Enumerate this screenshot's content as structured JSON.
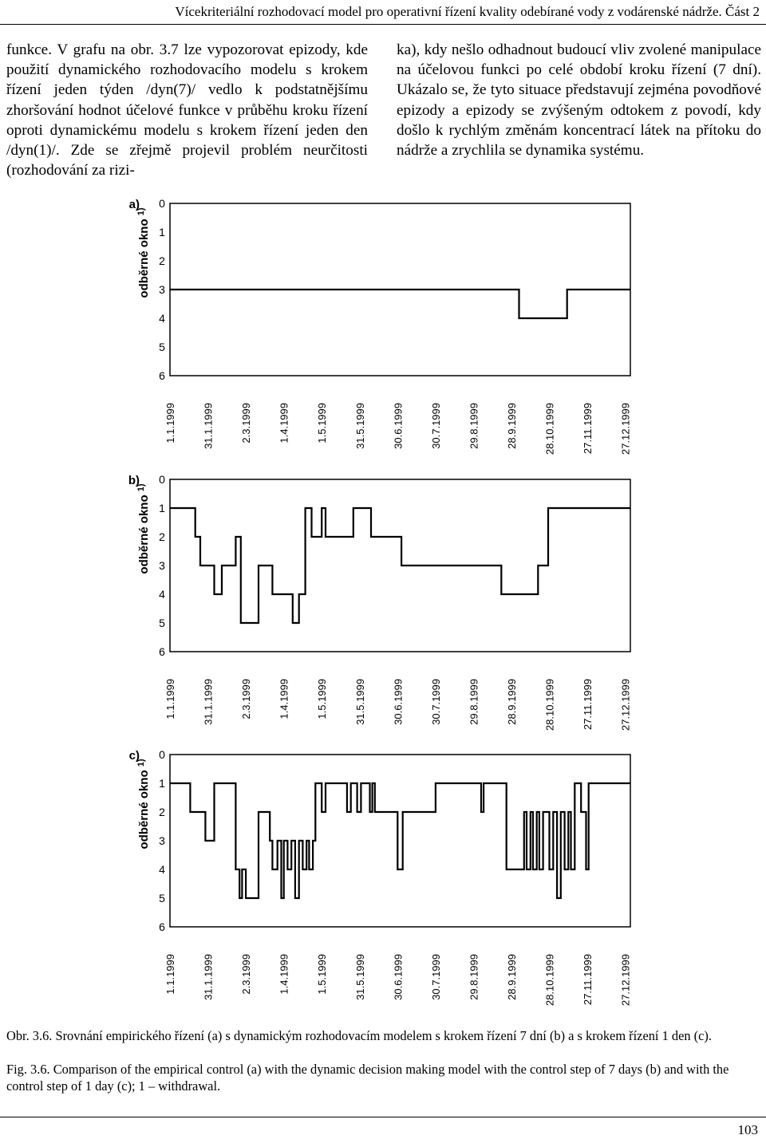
{
  "header": {
    "running_title": "Vícekriteriální rozhodovací model pro operativní řízení kvality odebírané vody z vodárenské nádrže. Část 2"
  },
  "body_text": {
    "left_column": "funkce. V grafu na obr. 3.7 lze vypozorovat epizody, kde použití dynamického rozhodovacího modelu s krokem řízení jeden týden /dyn(7)/ vedlo k podstatnějšímu zhoršování hodnot účelové funkce v průběhu kroku řízení oproti dynamickému modelu s krokem řízení jeden den /dyn(1)/. Zde se zřejmě projevil problém neurčitosti (rozhodování za rizi-",
    "right_column": "ka), kdy nešlo odhadnout budoucí vliv zvolené manipulace na účelovou funkci po celé období kroku řízení (7 dní). Ukázalo se, že tyto situace představují zejména povodňové epizody a epizody se zvýšeným odtokem z povodí, kdy došlo k rychlým změnám koncentrací látek na přítoku do nádrže a zrychlila se dynamika systému."
  },
  "chart_data": [
    {
      "type": "line",
      "panel_label": "a)",
      "ylabel": "odběrné okno",
      "ylabel_superscript": "1)",
      "ylim": [
        6,
        0
      ],
      "yticks": [
        "0",
        "1",
        "2",
        "3",
        "4",
        "5",
        "6"
      ],
      "xlim": [
        1,
        365
      ],
      "xticks": [
        {
          "day": 1,
          "label": "1.1.1999"
        },
        {
          "day": 31,
          "label": "31.1.1999"
        },
        {
          "day": 61,
          "label": "2.3.1999"
        },
        {
          "day": 91,
          "label": "1.4.1999"
        },
        {
          "day": 121,
          "label": "1.5.1999"
        },
        {
          "day": 151,
          "label": "31.5.1999"
        },
        {
          "day": 181,
          "label": "30.6.1999"
        },
        {
          "day": 211,
          "label": "30.7.1999"
        },
        {
          "day": 241,
          "label": "29.8.1999"
        },
        {
          "day": 271,
          "label": "28.9.1999"
        },
        {
          "day": 301,
          "label": "28.10.1999"
        },
        {
          "day": 331,
          "label": "27.11.1999"
        },
        {
          "day": 361,
          "label": "27.12.1999"
        }
      ],
      "series": [
        {
          "x": [
            1,
            277,
            277,
            315,
            315,
            365
          ],
          "y": [
            3,
            3,
            4,
            4,
            3,
            3
          ]
        }
      ]
    },
    {
      "type": "line",
      "panel_label": "b)",
      "ylabel": "odběrné okno",
      "ylabel_superscript": "1)",
      "ylim": [
        6,
        0
      ],
      "yticks": [
        "0",
        "1",
        "2",
        "3",
        "4",
        "5",
        "6"
      ],
      "xlim": [
        1,
        365
      ],
      "xticks": [
        {
          "day": 1,
          "label": "1.1.1999"
        },
        {
          "day": 31,
          "label": "31.1.1999"
        },
        {
          "day": 61,
          "label": "2.3.1999"
        },
        {
          "day": 91,
          "label": "1.4.1999"
        },
        {
          "day": 121,
          "label": "1.5.1999"
        },
        {
          "day": 151,
          "label": "31.5.1999"
        },
        {
          "day": 181,
          "label": "30.6.1999"
        },
        {
          "day": 211,
          "label": "30.7.1999"
        },
        {
          "day": 241,
          "label": "29.8.1999"
        },
        {
          "day": 271,
          "label": "28.9.1999"
        },
        {
          "day": 301,
          "label": "28.10.1999"
        },
        {
          "day": 331,
          "label": "27.11.1999"
        },
        {
          "day": 361,
          "label": "27.12.1999"
        }
      ],
      "series": [
        {
          "x": [
            1,
            21,
            21,
            25,
            25,
            36,
            36,
            42,
            42,
            53,
            53,
            57,
            57,
            71,
            71,
            82,
            82,
            98,
            98,
            103,
            103,
            108,
            108,
            113,
            113,
            121,
            121,
            124,
            124,
            146,
            146,
            160,
            160,
            184,
            184,
            263,
            263,
            292,
            292,
            300,
            300,
            365
          ],
          "y": [
            1,
            1,
            2,
            2,
            3,
            3,
            4,
            4,
            3,
            3,
            2,
            2,
            5,
            5,
            3,
            3,
            4,
            4,
            5,
            5,
            4,
            4,
            1,
            1,
            2,
            2,
            1,
            1,
            2,
            2,
            1,
            1,
            2,
            2,
            3,
            3,
            4,
            4,
            3,
            3,
            1,
            1
          ]
        }
      ]
    },
    {
      "type": "line",
      "panel_label": "c)",
      "ylabel": "odběrné okno",
      "ylabel_superscript": "1)",
      "ylim": [
        6,
        0
      ],
      "yticks": [
        "0",
        "1",
        "2",
        "3",
        "4",
        "5",
        "6"
      ],
      "xlim": [
        1,
        365
      ],
      "xticks": [
        {
          "day": 1,
          "label": "1.1.1999"
        },
        {
          "day": 31,
          "label": "31.1.1999"
        },
        {
          "day": 61,
          "label": "2.3.1999"
        },
        {
          "day": 91,
          "label": "1.4.1999"
        },
        {
          "day": 121,
          "label": "1.5.1999"
        },
        {
          "day": 151,
          "label": "31.5.1999"
        },
        {
          "day": 181,
          "label": "30.6.1999"
        },
        {
          "day": 211,
          "label": "30.7.1999"
        },
        {
          "day": 241,
          "label": "29.8.1999"
        },
        {
          "day": 271,
          "label": "28.9.1999"
        },
        {
          "day": 301,
          "label": "28.10.1999"
        },
        {
          "day": 331,
          "label": "27.11.1999"
        },
        {
          "day": 361,
          "label": "27.12.1999"
        }
      ],
      "series": [
        {
          "x": [
            1,
            17,
            17,
            29,
            29,
            36,
            36,
            53,
            53,
            56,
            56,
            58,
            58,
            61,
            61,
            71,
            71,
            80,
            80,
            82,
            82,
            86,
            86,
            89,
            89,
            91,
            91,
            94,
            94,
            97,
            97,
            100,
            100,
            103,
            103,
            106,
            106,
            109,
            109,
            111,
            111,
            114,
            114,
            116,
            116,
            121,
            121,
            124,
            124,
            141,
            141,
            144,
            144,
            149,
            149,
            152,
            152,
            159,
            159,
            161,
            161,
            163,
            163,
            181,
            181,
            185,
            185,
            211,
            211,
            247,
            247,
            249,
            249,
            267,
            267,
            281,
            281,
            283,
            283,
            286,
            286,
            288,
            288,
            291,
            291,
            293,
            293,
            296,
            296,
            301,
            301,
            304,
            304,
            307,
            307,
            310,
            310,
            313,
            313,
            316,
            316,
            318,
            318,
            321,
            321,
            326,
            326,
            330,
            330,
            332,
            332,
            365
          ],
          "y": [
            1,
            1,
            2,
            2,
            3,
            3,
            1,
            1,
            4,
            4,
            5,
            5,
            4,
            4,
            5,
            5,
            2,
            2,
            3,
            3,
            4,
            4,
            3,
            3,
            5,
            5,
            3,
            3,
            4,
            4,
            3,
            3,
            5,
            5,
            3,
            3,
            4,
            4,
            3,
            3,
            4,
            4,
            3,
            3,
            1,
            1,
            2,
            2,
            1,
            1,
            2,
            2,
            1,
            1,
            2,
            2,
            1,
            1,
            2,
            2,
            1,
            1,
            2,
            2,
            4,
            4,
            2,
            2,
            1,
            1,
            2,
            2,
            1,
            1,
            4,
            4,
            2,
            2,
            4,
            4,
            2,
            2,
            4,
            4,
            2,
            2,
            4,
            4,
            2,
            2,
            4,
            4,
            2,
            2,
            5,
            5,
            2,
            2,
            4,
            4,
            2,
            2,
            4,
            4,
            1,
            1,
            2,
            2,
            4,
            4,
            1,
            1
          ]
        }
      ]
    }
  ],
  "captions": {
    "cz": "Obr. 3.6. Srovnání empirického řízení (a) s dynamickým rozhodovacím modelem s krokem řízení 7 dní (b) a s krokem řízení 1 den (c).",
    "en": "Fig. 3.6. Comparison of the empirical control (a) with the dynamic decision making model with the control step of 7 days (b) and with the control step of 1 day (c); 1 – withdrawal."
  },
  "footer": {
    "page_number": "103"
  }
}
